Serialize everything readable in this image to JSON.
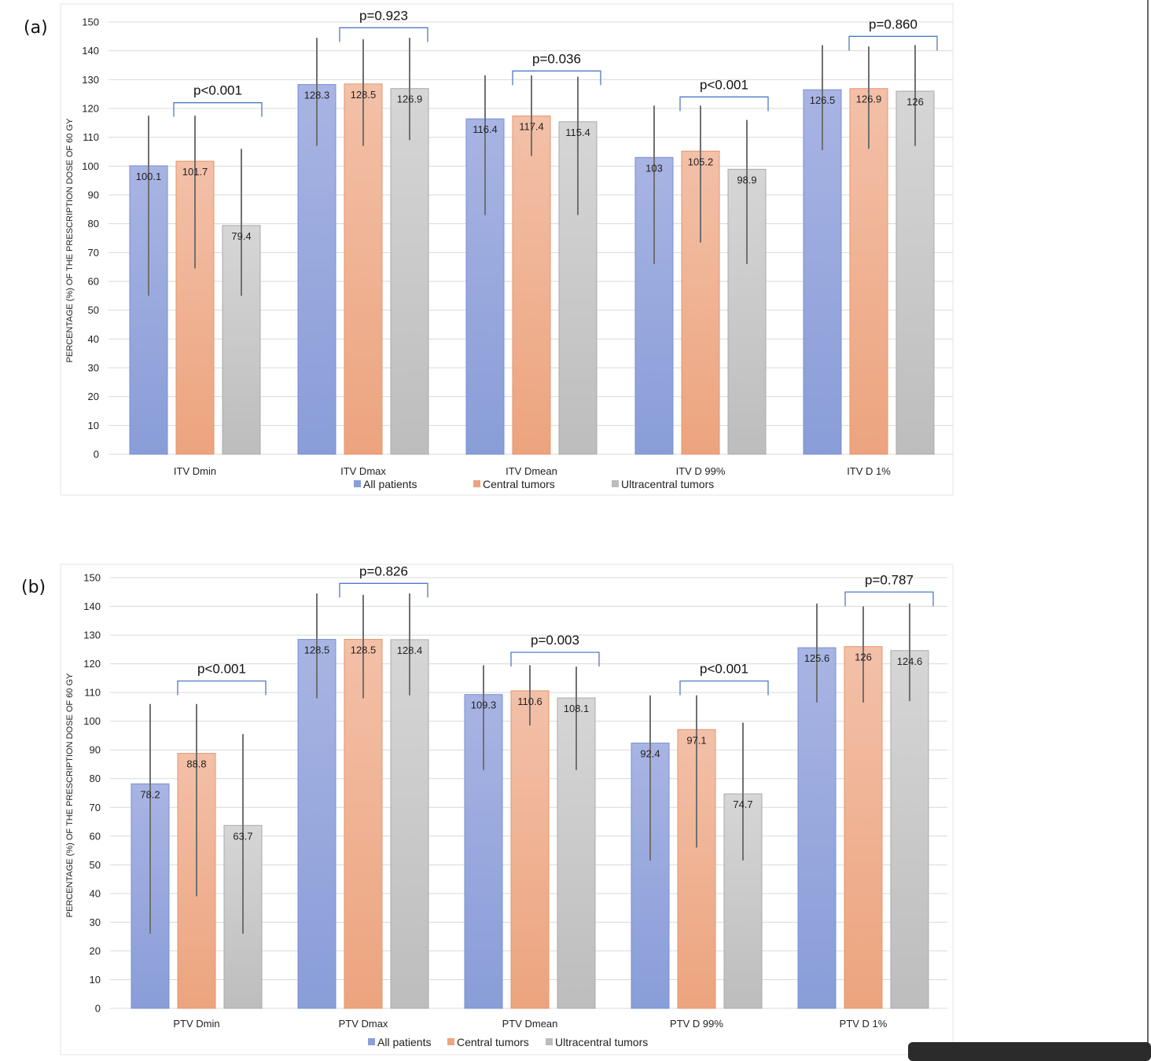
{
  "panel_labels": [
    "(a)",
    "(b)"
  ],
  "colors": {
    "all_patients": [
      "#a3b0e2",
      "#8a9fd8"
    ],
    "central": [
      "#f2bba3",
      "#eca580"
    ],
    "ultracentral": [
      "#d3d3d3",
      "#bcbcbc"
    ],
    "all_patients_edge": "#7a8fd1",
    "central_edge": "#e6956b",
    "ultracentral_edge": "#aaaaaa",
    "bracket": "#4f7ac7",
    "error_bar": "#707070"
  },
  "chart_data": [
    {
      "type": "bar",
      "panel": "(a)",
      "ylabel": "PERCENTAGE (%) OF THE PRESCRIPTION DOSE OF 60 GY",
      "ylim": [
        0,
        150
      ],
      "ytick_step": 10,
      "grid": true,
      "legend_position": "bottom",
      "categories": [
        "ITV Dmin",
        "ITV Dmax",
        "ITV Dmean",
        "ITV D 99%",
        "ITV D 1%"
      ],
      "series": [
        {
          "name": "All patients",
          "values": [
            100.1,
            128.3,
            116.4,
            103,
            126.5
          ],
          "labels": [
            "100.1",
            "128.3",
            "116.4",
            "103",
            "126.5"
          ],
          "err_high": [
            117.5,
            144.5,
            131.5,
            121,
            142
          ],
          "err_low": [
            55,
            107,
            83,
            66,
            105.5
          ]
        },
        {
          "name": "Central tumors",
          "values": [
            101.7,
            128.5,
            117.4,
            105.2,
            126.9
          ],
          "labels": [
            "101.7",
            "128.5",
            "117.4",
            "105.2",
            "126.9"
          ],
          "err_high": [
            117.5,
            144,
            131.5,
            121,
            141.5
          ],
          "err_low": [
            64.5,
            107,
            103.5,
            73.5,
            106
          ]
        },
        {
          "name": "Ultracentral tumors",
          "values": [
            79.4,
            126.9,
            115.4,
            98.9,
            126
          ],
          "labels": [
            "79.4",
            "126.9",
            "115.4",
            "98.9",
            "126"
          ],
          "err_high": [
            106,
            144.5,
            131,
            116,
            142
          ],
          "err_low": [
            55,
            109,
            83,
            66,
            107
          ]
        }
      ],
      "p_values": [
        "p<0.001",
        "p=0.923",
        "p=0.036",
        "p<0.001",
        "p=0.860"
      ],
      "bracket_tops": [
        122,
        148,
        133,
        124,
        145
      ]
    },
    {
      "type": "bar",
      "panel": "(b)",
      "ylabel": "PERCENTAGE (%) OF THE PRESCRIPTION DOSE OF 60 GY",
      "ylim": [
        0,
        150
      ],
      "ytick_step": 10,
      "grid": true,
      "legend_position": "bottom",
      "categories": [
        "PTV Dmin",
        "PTV Dmax",
        "PTV Dmean",
        "PTV D 99%",
        "PTV D 1%"
      ],
      "series": [
        {
          "name": "All patients",
          "values": [
            78.2,
            128.5,
            109.3,
            92.4,
            125.6
          ],
          "labels": [
            "78.2",
            "128.5",
            "109.3",
            "92.4",
            "125.6"
          ],
          "err_high": [
            106,
            144.5,
            119.5,
            109,
            141
          ],
          "err_low": [
            26,
            108,
            83,
            51.5,
            106.5
          ]
        },
        {
          "name": "Central tumors",
          "values": [
            88.8,
            128.5,
            110.6,
            97.1,
            126
          ],
          "labels": [
            "88.8",
            "128.5",
            "110.6",
            "97.1",
            "126"
          ],
          "err_high": [
            106,
            144,
            119.5,
            109,
            140
          ],
          "err_low": [
            39,
            108,
            98.5,
            56,
            106.5
          ]
        },
        {
          "name": "Ultracentral tumors",
          "values": [
            63.7,
            128.4,
            108.1,
            74.7,
            124.6
          ],
          "labels": [
            "63.7",
            "128.4",
            "108.1",
            "74.7",
            "124.6"
          ],
          "err_high": [
            95.5,
            144.5,
            119,
            99.5,
            141
          ],
          "err_low": [
            26,
            109,
            83,
            51.5,
            107
          ]
        }
      ],
      "p_values": [
        "p<0.001",
        "p=0.826",
        "p=0.003",
        "p<0.001",
        "p=0.787"
      ],
      "bracket_tops": [
        114,
        148,
        124,
        114,
        145
      ]
    }
  ]
}
